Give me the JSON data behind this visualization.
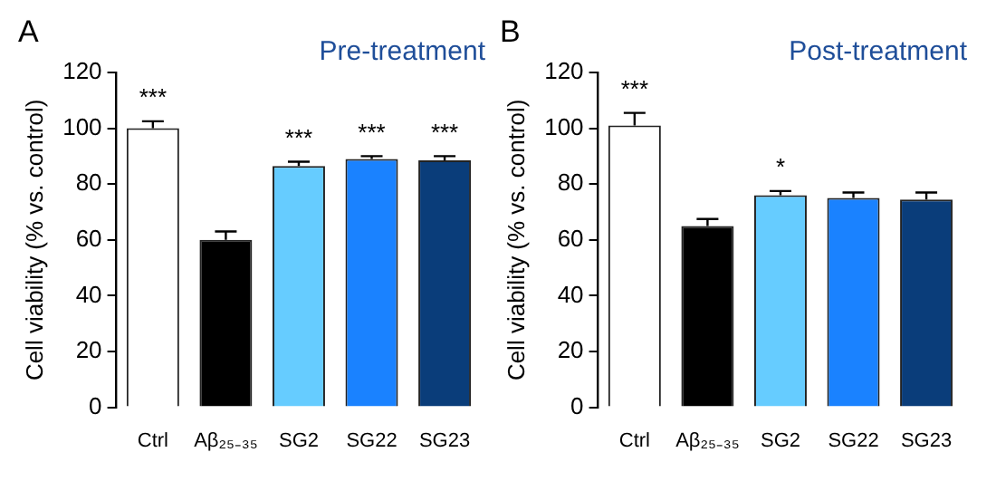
{
  "chart_data": [
    {
      "type": "bar",
      "title": "Pre-treatment",
      "ylabel": "Cell viability (% vs. control)",
      "categories": [
        "Ctrl",
        "Aβ₂₅₋₃₅",
        "SG2",
        "SG22",
        "SG23"
      ],
      "values": [
        100,
        60,
        86.5,
        89,
        88.5
      ],
      "errors": [
        2.5,
        3,
        1.5,
        1,
        1.5
      ],
      "value_labels": [
        "***",
        null,
        "***",
        "***",
        "***"
      ],
      "colors": [
        "#ffffff",
        "#000000",
        "#66ccff",
        "#1a82ff",
        "#0a3d7a"
      ],
      "ylim": [
        0,
        120
      ],
      "yticks": [
        0,
        20,
        40,
        60,
        80,
        100,
        120
      ],
      "annotations": [
        "A"
      ]
    },
    {
      "type": "bar",
      "title": "Post-treatment",
      "ylabel": "Cell viability (% vs. control)",
      "categories": [
        "Ctrl",
        "Aβ₂₅₋₃₅",
        "SG2",
        "SG22",
        "SG23"
      ],
      "values": [
        101,
        65,
        76,
        75,
        74.5
      ],
      "errors": [
        4.5,
        2.5,
        1.5,
        2,
        2.5
      ],
      "value_labels": [
        "***",
        null,
        "*",
        null,
        null
      ],
      "colors": [
        "#ffffff",
        "#000000",
        "#66ccff",
        "#1a82ff",
        "#0a3d7a"
      ],
      "ylim": [
        0,
        120
      ],
      "yticks": [
        0,
        20,
        40,
        60,
        80,
        100,
        120
      ],
      "annotations": [
        "B"
      ]
    }
  ]
}
